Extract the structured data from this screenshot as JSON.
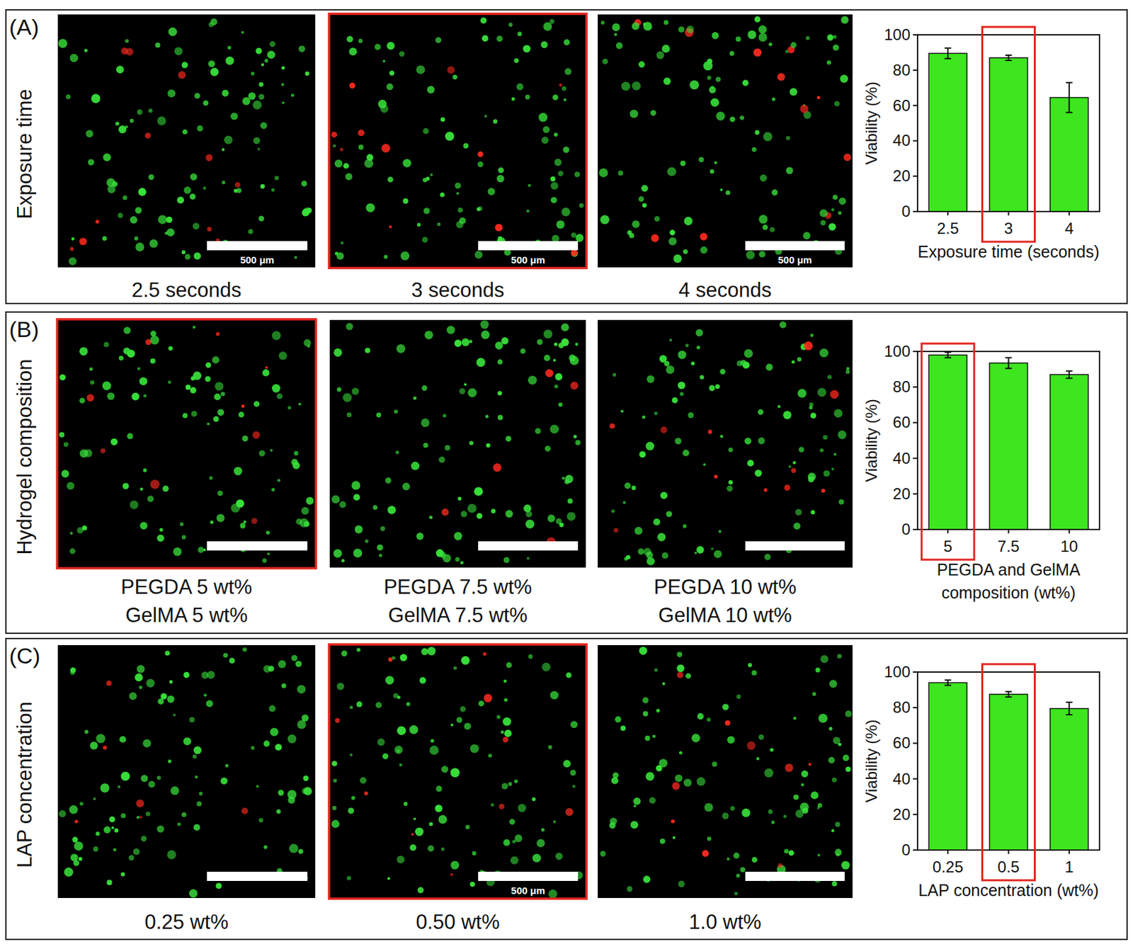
{
  "chart_data": [
    {
      "type": "bar",
      "panel": "(A)",
      "title": "Exposure time",
      "image_captions": [
        [
          "2.5 seconds"
        ],
        [
          "3 seconds"
        ],
        [
          "4 seconds"
        ]
      ],
      "scale_bar_labels": [
        "500 μm",
        "500 μm",
        "500 μm"
      ],
      "highlight": 1,
      "categories": [
        "2.5",
        "3",
        "4"
      ],
      "values": [
        89.5,
        87,
        64.5
      ],
      "errors": [
        3,
        1.5,
        8.5
      ],
      "xlabel": [
        "Exposure time (seconds)"
      ],
      "ylabel": "Viability (%)",
      "ylim": [
        0,
        100
      ],
      "yticks": [
        0,
        20,
        40,
        60,
        80,
        100
      ],
      "color": "#3de61e"
    },
    {
      "type": "bar",
      "panel": "(B)",
      "title": "Hydrogel composition",
      "image_captions": [
        [
          "PEGDA 5 wt%",
          "GelMA 5 wt%"
        ],
        [
          "PEGDA 7.5 wt%",
          "GelMA 7.5 wt%"
        ],
        [
          "PEGDA 10 wt%",
          "GelMA 10 wt%"
        ]
      ],
      "scale_bar_labels": [
        null,
        null,
        null
      ],
      "highlight": 0,
      "categories": [
        "5",
        "7.5",
        "10"
      ],
      "values": [
        98,
        93.5,
        87
      ],
      "errors": [
        1.5,
        3,
        2
      ],
      "xlabel": [
        "PEGDA and GelMA",
        "composition (wt%)"
      ],
      "ylabel": "Viability (%)",
      "ylim": [
        0,
        100
      ],
      "yticks": [
        0,
        20,
        40,
        60,
        80,
        100
      ],
      "color": "#3de61e"
    },
    {
      "type": "bar",
      "panel": "(C)",
      "title": "LAP concentration",
      "image_captions": [
        [
          "0.25 wt%"
        ],
        [
          "0.50 wt%"
        ],
        [
          "1.0 wt%"
        ]
      ],
      "scale_bar_labels": [
        null,
        "500 μm",
        null
      ],
      "highlight": 1,
      "categories": [
        "0.25",
        "0.5",
        "1"
      ],
      "values": [
        94,
        87.5,
        79.5
      ],
      "errors": [
        1.5,
        1.5,
        3.5
      ],
      "xlabel": [
        "LAP concentration (wt%)"
      ],
      "ylabel": "Viability (%)",
      "ylim": [
        0,
        100
      ],
      "yticks": [
        0,
        20,
        40,
        60,
        80,
        100
      ],
      "color": "#3de61e"
    }
  ]
}
